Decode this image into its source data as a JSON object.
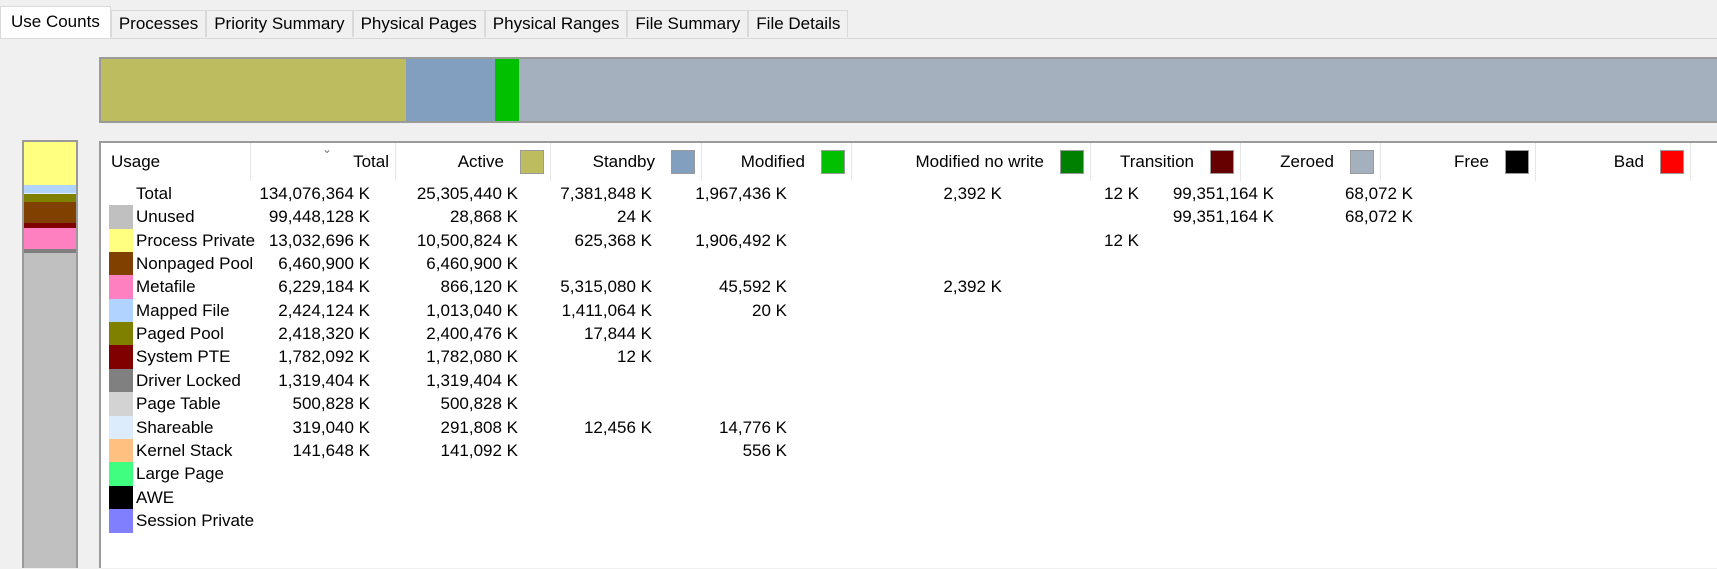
{
  "tabs": [
    {
      "label": "Use Counts",
      "active": true
    },
    {
      "label": "Processes"
    },
    {
      "label": "Priority Summary"
    },
    {
      "label": "Physical Pages"
    },
    {
      "label": "Physical Ranges"
    },
    {
      "label": "File Summary"
    },
    {
      "label": "File Details"
    }
  ],
  "columns": [
    {
      "label": "Usage"
    },
    {
      "label": "Total"
    },
    {
      "label": "Active",
      "color": "#bdbd5f"
    },
    {
      "label": "Standby",
      "color": "#839fbf"
    },
    {
      "label": "Modified",
      "color": "#00c000"
    },
    {
      "label": "Modified no write",
      "color": "#008000"
    },
    {
      "label": "Transition",
      "color": "#660000"
    },
    {
      "label": "Zeroed",
      "color": "#a4b0bd"
    },
    {
      "label": "Free",
      "color": "#000000"
    },
    {
      "label": "Bad",
      "color": "#ff0000"
    }
  ],
  "sort_column": "Total",
  "rows": [
    {
      "label": "Total",
      "color": null,
      "values": [
        "134,076,364 K",
        "25,305,440 K",
        "7,381,848 K",
        "1,967,436 K",
        "2,392 K",
        "12 K",
        "99,351,164 K",
        "68,072 K",
        ""
      ]
    },
    {
      "label": "Unused",
      "color": "#c0c0c0",
      "values": [
        "99,448,128 K",
        "28,868 K",
        "24 K",
        "",
        "",
        "",
        "99,351,164 K",
        "68,072 K",
        ""
      ]
    },
    {
      "label": "Process Private",
      "color": "#ffff80",
      "values": [
        "13,032,696 K",
        "10,500,824 K",
        "625,368 K",
        "1,906,492 K",
        "",
        "12 K",
        "",
        "",
        ""
      ]
    },
    {
      "label": "Nonpaged Pool",
      "color": "#804000",
      "values": [
        "6,460,900 K",
        "6,460,900 K",
        "",
        "",
        "",
        "",
        "",
        "",
        ""
      ]
    },
    {
      "label": "Metafile",
      "color": "#ff80c0",
      "values": [
        "6,229,184 K",
        "866,120 K",
        "5,315,080 K",
        "45,592 K",
        "2,392 K",
        "",
        "",
        "",
        ""
      ]
    },
    {
      "label": "Mapped File",
      "color": "#b0d4ff",
      "values": [
        "2,424,124 K",
        "1,013,040 K",
        "1,411,064 K",
        "20 K",
        "",
        "",
        "",
        "",
        ""
      ]
    },
    {
      "label": "Paged Pool",
      "color": "#808000",
      "values": [
        "2,418,320 K",
        "2,400,476 K",
        "17,844 K",
        "",
        "",
        "",
        "",
        "",
        ""
      ]
    },
    {
      "label": "System PTE",
      "color": "#800000",
      "values": [
        "1,782,092 K",
        "1,782,080 K",
        "12 K",
        "",
        "",
        "",
        "",
        "",
        ""
      ]
    },
    {
      "label": "Driver Locked",
      "color": "#808080",
      "values": [
        "1,319,404 K",
        "1,319,404 K",
        "",
        "",
        "",
        "",
        "",
        "",
        ""
      ]
    },
    {
      "label": "Page Table",
      "color": "#d3d3d3",
      "values": [
        "500,828 K",
        "500,828 K",
        "",
        "",
        "",
        "",
        "",
        "",
        ""
      ]
    },
    {
      "label": "Shareable",
      "color": "#dcecfc",
      "values": [
        "319,040 K",
        "291,808 K",
        "12,456 K",
        "14,776 K",
        "",
        "",
        "",
        "",
        ""
      ]
    },
    {
      "label": "Kernel Stack",
      "color": "#ffc080",
      "values": [
        "141,648 K",
        "141,092 K",
        "",
        "556 K",
        "",
        "",
        "",
        "",
        ""
      ]
    },
    {
      "label": "Large Page",
      "color": "#40ff80",
      "values": [
        "",
        "",
        "",
        "",
        "",
        "",
        "",
        "",
        ""
      ]
    },
    {
      "label": "AWE",
      "color": "#000000",
      "values": [
        "",
        "",
        "",
        "",
        "",
        "",
        "",
        "",
        ""
      ]
    },
    {
      "label": "Session Private",
      "color": "#8080ff",
      "values": [
        "",
        "",
        "",
        "",
        "",
        "",
        "",
        "",
        ""
      ]
    }
  ],
  "hbar": [
    {
      "name": "Active",
      "fraction": 0.1887,
      "color": "#bdbd5f"
    },
    {
      "name": "Standby",
      "fraction": 0.0551,
      "color": "#839fbf"
    },
    {
      "name": "Modified",
      "fraction": 0.0147,
      "color": "#00c000"
    },
    {
      "name": "Zeroed",
      "fraction": 0.741,
      "color": "#a4b0bd"
    }
  ],
  "vbar": [
    {
      "name": "Process Private",
      "fraction": 0.0972,
      "color": "#ffff80"
    },
    {
      "name": "Mapped File",
      "fraction": 0.0181,
      "color": "#b0d4ff"
    },
    {
      "name": "Shareable",
      "fraction": 0.0024,
      "color": "#dcecfc"
    },
    {
      "name": "Paged Pool",
      "fraction": 0.018,
      "color": "#808000"
    },
    {
      "name": "Nonpaged Pool",
      "fraction": 0.0482,
      "color": "#804000"
    },
    {
      "name": "System PTE",
      "fraction": 0.0133,
      "color": "#800000"
    },
    {
      "name": "Metafile",
      "fraction": 0.0465,
      "color": "#ff80c0"
    },
    {
      "name": "Driver Locked",
      "fraction": 0.0098,
      "color": "#808080"
    },
    {
      "name": "Unused",
      "fraction": 0.7417,
      "color": "#c0c0c0"
    }
  ]
}
